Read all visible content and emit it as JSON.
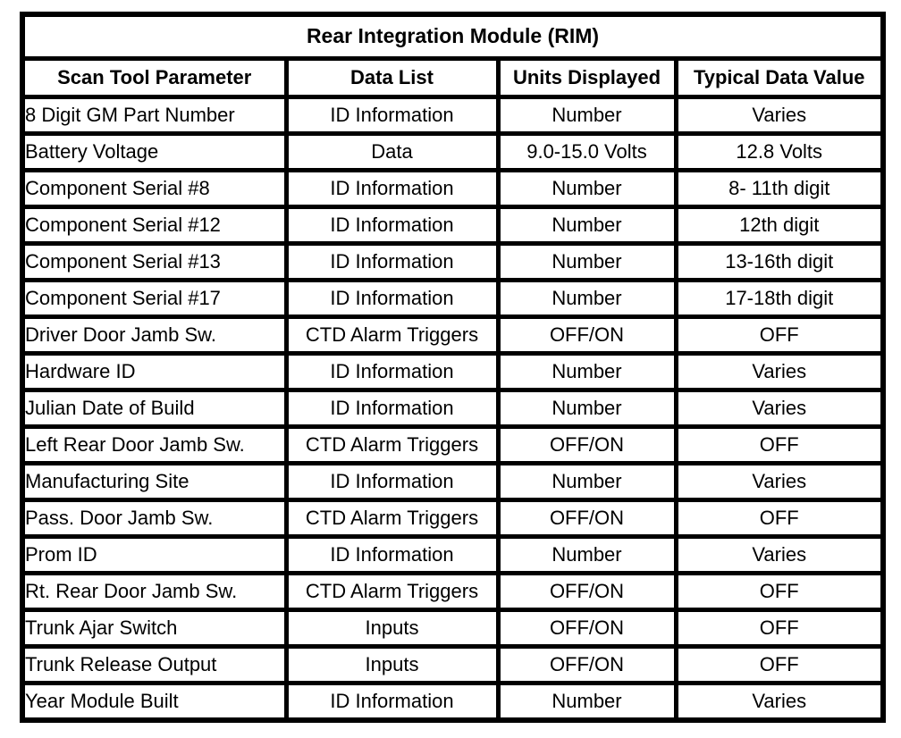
{
  "table": {
    "title": "Rear Integration Module (RIM)",
    "columns": [
      "Scan Tool Parameter",
      "Data List",
      "Units Displayed",
      "Typical Data Value"
    ],
    "rows": [
      [
        "8 Digit GM Part Number",
        "ID Information",
        "Number",
        "Varies"
      ],
      [
        "Battery Voltage",
        "Data",
        "9.0-15.0 Volts",
        "12.8 Volts"
      ],
      [
        "Component Serial #8",
        "ID Information",
        "Number",
        "8- 11th digit"
      ],
      [
        "Component Serial #12",
        "ID Information",
        "Number",
        "12th digit"
      ],
      [
        "Component Serial #13",
        "ID Information",
        "Number",
        "13-16th digit"
      ],
      [
        "Component Serial #17",
        "ID Information",
        "Number",
        "17-18th digit"
      ],
      [
        "Driver Door Jamb Sw.",
        "CTD Alarm Triggers",
        "OFF/ON",
        "OFF"
      ],
      [
        "Hardware ID",
        "ID Information",
        "Number",
        "Varies"
      ],
      [
        "Julian Date of Build",
        "ID Information",
        "Number",
        "Varies"
      ],
      [
        "Left Rear Door Jamb Sw.",
        "CTD Alarm Triggers",
        "OFF/ON",
        "OFF"
      ],
      [
        "Manufacturing Site",
        "ID Information",
        "Number",
        "Varies"
      ],
      [
        "Pass. Door Jamb Sw.",
        "CTD Alarm Triggers",
        "OFF/ON",
        "OFF"
      ],
      [
        "Prom ID",
        "ID Information",
        "Number",
        "Varies"
      ],
      [
        "Rt. Rear Door Jamb Sw.",
        "CTD Alarm Triggers",
        "OFF/ON",
        "OFF"
      ],
      [
        "Trunk Ajar Switch",
        "Inputs",
        "OFF/ON",
        "OFF"
      ],
      [
        "Trunk Release Output",
        "Inputs",
        "OFF/ON",
        "OFF"
      ],
      [
        "Year Module Built",
        "ID Information",
        "Number",
        "Varies"
      ]
    ],
    "colors": {
      "border": "#000000",
      "background": "#ffffff",
      "text": "#000000"
    }
  }
}
